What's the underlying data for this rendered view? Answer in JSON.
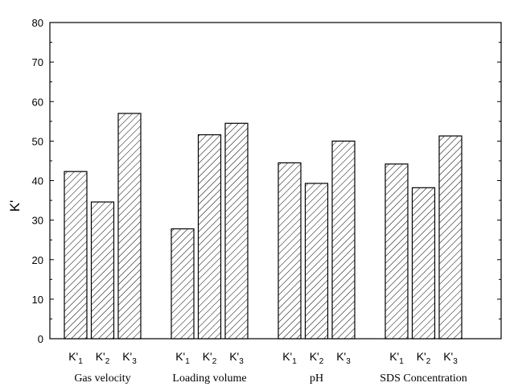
{
  "chart_data": {
    "type": "bar",
    "title": "",
    "xlabel": "",
    "ylabel": "K'",
    "ylim": [
      0,
      80
    ],
    "yticks": [
      0,
      10,
      20,
      30,
      40,
      50,
      60,
      70,
      80
    ],
    "bar_fill": "hatched",
    "bar_color": "#000000",
    "groups": [
      {
        "name": "Gas velocity",
        "bars": [
          {
            "label": "K'",
            "sub": "1",
            "value": 42.3
          },
          {
            "label": "K'",
            "sub": "2",
            "value": 34.6
          },
          {
            "label": "K'",
            "sub": "3",
            "value": 57.0
          }
        ]
      },
      {
        "name": "Loading volume",
        "bars": [
          {
            "label": "K'",
            "sub": "1",
            "value": 27.8
          },
          {
            "label": "K'",
            "sub": "2",
            "value": 51.6
          },
          {
            "label": "K'",
            "sub": "3",
            "value": 54.5
          }
        ]
      },
      {
        "name": "pH",
        "bars": [
          {
            "label": "K'",
            "sub": "1",
            "value": 44.5
          },
          {
            "label": "K'",
            "sub": "2",
            "value": 39.3
          },
          {
            "label": "K'",
            "sub": "3",
            "value": 50.0
          }
        ]
      },
      {
        "name": "SDS Concentration",
        "bars": [
          {
            "label": "K'",
            "sub": "1",
            "value": 44.2
          },
          {
            "label": "K'",
            "sub": "2",
            "value": 38.2
          },
          {
            "label": "K'",
            "sub": "3",
            "value": 51.3
          }
        ]
      }
    ]
  }
}
